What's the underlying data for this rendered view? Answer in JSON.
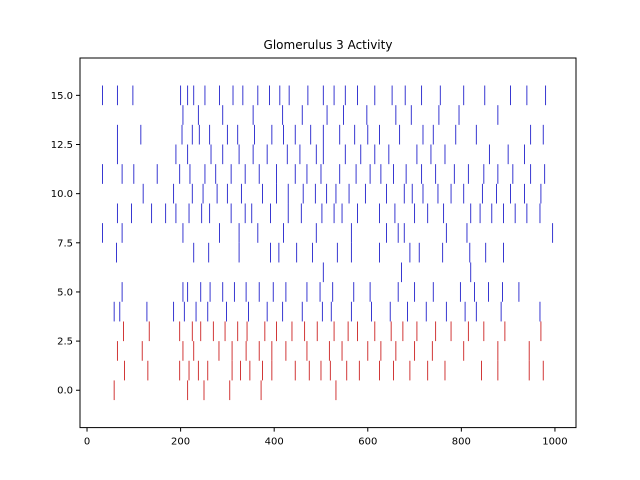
{
  "chart_data": {
    "type": "scatter",
    "subtype": "raster",
    "title": "Glomerulus 3 Activity",
    "xlabel": "",
    "ylabel": "",
    "xlim": [
      -15,
      1045
    ],
    "ylim": [
      -1.9,
      16.9
    ],
    "xticks": [
      0,
      200,
      400,
      600,
      800,
      1000
    ],
    "xtick_labels": [
      "0",
      "200",
      "400",
      "600",
      "800",
      "1000"
    ],
    "yticks": [
      0.0,
      2.5,
      5.0,
      7.5,
      10.0,
      12.5,
      15.0
    ],
    "ytick_labels": [
      "0.0",
      "2.5",
      "5.0",
      "7.5",
      "10.0",
      "12.5",
      "15.0"
    ],
    "grid": false,
    "series": [
      {
        "color": "#cc2222",
        "rows": [
          {
            "y": 0,
            "spikes": [
              58,
              215,
              250,
              305,
              372,
              532
            ]
          },
          {
            "y": 1,
            "spikes": [
              80,
              130,
              198,
              218,
              238,
              258,
              310,
              328,
              348,
              375,
              395,
              445,
              475,
              500,
              520,
              555,
              582,
              625,
              655,
              690,
              728,
              765,
              843,
              878,
              945,
              975
            ]
          },
          {
            "y": 2,
            "spikes": [
              65,
              118,
              205,
              228,
              282,
              310,
              340,
              368,
              395,
              425,
              470,
              518,
              545,
              600,
              628,
              660,
              700,
              738,
              805,
              878,
              945
            ]
          },
          {
            "y": 3,
            "spikes": [
              78,
              133,
              198,
              225,
              243,
              270,
              295,
              322,
              342,
              380,
              405,
              438,
              465,
              492,
              528,
              558,
              578,
              615,
              650,
              675,
              705,
              745,
              778,
              815,
              848,
              893,
              970
            ]
          }
        ]
      },
      {
        "color": "#2222cc",
        "rows": [
          {
            "y": 4,
            "spikes": [
              58,
              70,
              128,
              185,
              208,
              233,
              258,
              298,
              345,
              385,
              418,
              460,
              503,
              522,
              565,
              608,
              648,
              685,
              725,
              768,
              808,
              832,
              885,
              968
            ]
          },
          {
            "y": 5,
            "spikes": [
              75,
              205,
              215,
              243,
              263,
              290,
              315,
              340,
              368,
              398,
              425,
              470,
              498,
              525,
              570,
              605,
              665,
              700,
              740,
              798,
              828,
              858,
              888,
              923
            ]
          },
          {
            "y": 6,
            "spikes": [
              505,
              672,
              820
            ]
          },
          {
            "y": 7,
            "spikes": [
              63,
              228,
              260,
              325,
              392,
              410,
              448,
              482,
              535,
              565,
              625,
              690,
              710,
              760,
              818,
              852,
              890
            ]
          },
          {
            "y": 8,
            "spikes": [
              33,
              75,
              205,
              283,
              325,
              365,
              420,
              490,
              565,
              640,
              665,
              678,
              768,
              812,
              995
            ]
          },
          {
            "y": 9,
            "spikes": [
              65,
              95,
              138,
              168,
              190,
              218,
              245,
              262,
              308,
              338,
              352,
              392,
              430,
              458,
              502,
              528,
              545,
              578,
              625,
              658,
              700,
              728,
              762,
              820,
              840,
              865,
              890,
              915,
              940,
              968
            ]
          },
          {
            "y": 10,
            "spikes": [
              120,
              185,
              225,
              248,
              278,
              300,
              330,
              375,
              405,
              430,
              462,
              488,
              512,
              532,
              560,
              595,
              640,
              678,
              695,
              718,
              750,
              778,
              805,
              845,
              875,
              905,
              935,
              970
            ]
          },
          {
            "y": 11,
            "spikes": [
              33,
              75,
              100,
              150,
              198,
              220,
              252,
              275,
              308,
              338,
              368,
              405,
              445,
              470,
              500,
              540,
              575,
              605,
              628,
              655,
              682,
              715,
              745,
              785,
              815,
              848,
              878,
              910,
              948,
              978
            ]
          },
          {
            "y": 12,
            "spikes": [
              65,
              190,
              215,
              265,
              290,
              325,
              355,
              385,
              428,
              455,
              490,
              505,
              552,
              585,
              615,
              645,
              705,
              735,
              765,
              860,
              900,
              935
            ]
          },
          {
            "y": 13,
            "spikes": [
              65,
              115,
              203,
              225,
              240,
              262,
              300,
              322,
              358,
              395,
              420,
              445,
              478,
              505,
              540,
              572,
              600,
              625,
              668,
              718,
              740,
              788,
              832,
              948,
              975
            ]
          },
          {
            "y": 14,
            "spikes": [
              205,
              238,
              290,
              355,
              418,
              460,
              513,
              548,
              598,
              660,
              693,
              752,
              795,
              878
            ]
          },
          {
            "y": 15,
            "spikes": [
              33,
              65,
              98,
              200,
              215,
              228,
              252,
              283,
              312,
              333,
              365,
              390,
              412,
              432,
              472,
              505,
              528,
              552,
              578,
              615,
              652,
              680,
              715,
              755,
              805,
              850,
              905,
              940,
              980
            ]
          }
        ]
      }
    ]
  }
}
